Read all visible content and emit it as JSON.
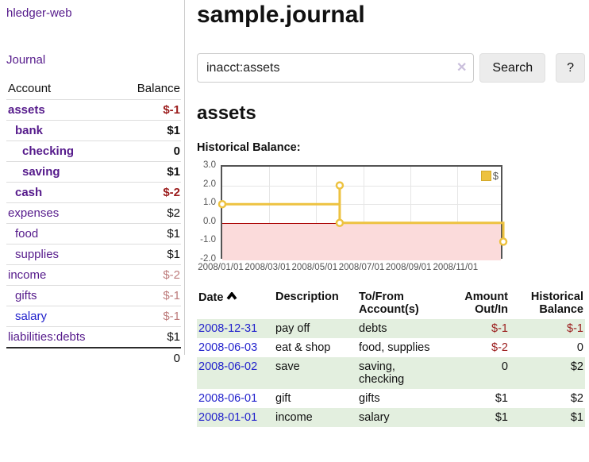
{
  "brand": "hledger-web",
  "nav": {
    "journal": "Journal"
  },
  "sidebar": {
    "header": {
      "account": "Account",
      "balance": "Balance"
    },
    "accounts": [
      {
        "name": "assets",
        "balance": "$-1",
        "depth": 0,
        "bold": true,
        "neg": "strong"
      },
      {
        "name": "bank",
        "balance": "$1",
        "depth": 1,
        "bold": true,
        "neg": "none"
      },
      {
        "name": "checking",
        "balance": "0",
        "depth": 2,
        "bold": true,
        "neg": "none"
      },
      {
        "name": "saving",
        "balance": "$1",
        "depth": 2,
        "bold": true,
        "neg": "none"
      },
      {
        "name": "cash",
        "balance": "$-2",
        "depth": 1,
        "bold": true,
        "neg": "strong"
      },
      {
        "name": "expenses",
        "balance": "$2",
        "depth": 0,
        "bold": false,
        "neg": "none"
      },
      {
        "name": "food",
        "balance": "$1",
        "depth": 1,
        "bold": false,
        "neg": "none"
      },
      {
        "name": "supplies",
        "balance": "$1",
        "depth": 1,
        "bold": false,
        "neg": "none"
      },
      {
        "name": "income",
        "balance": "$-2",
        "depth": 0,
        "bold": false,
        "neg": "pale"
      },
      {
        "name": "gifts",
        "balance": "$-1",
        "depth": 1,
        "bold": false,
        "neg": "pale"
      },
      {
        "name": "salary",
        "balance": "$-1",
        "depth": 1,
        "bold": false,
        "neg": "pale",
        "link_color": "blue"
      },
      {
        "name": "liabilities:debts",
        "balance": "$1",
        "depth": 0,
        "bold": false,
        "neg": "none"
      }
    ],
    "total": "0"
  },
  "main": {
    "title": "sample.journal",
    "search": {
      "value": "inacct:assets",
      "clear_icon": "✕",
      "button_label": "Search",
      "help_label": "?"
    },
    "account_heading": "assets",
    "chart_title": "Historical Balance:"
  },
  "chart_data": {
    "type": "line",
    "step": true,
    "title": "Historical Balance",
    "legend": "$",
    "series_color": "#edc240",
    "marker_fill": "#ffffff",
    "ylim": [
      -2,
      3
    ],
    "y_ticks": [
      "3.0",
      "2.0",
      "1.0",
      "0.0",
      "-1.0",
      "-2.0"
    ],
    "y_tick_values": [
      3,
      2,
      1,
      0,
      -1,
      -2
    ],
    "x_tick_labels": [
      "2008/01/01",
      "2008/03/01",
      "2008/05/01",
      "2008/07/01",
      "2008/09/01",
      "2008/11/01"
    ],
    "x_tick_pos": [
      0,
      0.1667,
      0.3333,
      0.5,
      0.6667,
      0.8333
    ],
    "points": [
      {
        "date": "2008-01-01",
        "x": 0,
        "y": 1
      },
      {
        "date": "2008-06-01",
        "x": 0.4167,
        "y": 2
      },
      {
        "date": "2008-06-03",
        "x": 0.4167,
        "y": 0
      },
      {
        "date": "2008-12-31",
        "x": 0.9973,
        "y": -1
      }
    ],
    "negative_region_color": "#fbdbdb",
    "zero_line_color": "#aa0000",
    "grid": true
  },
  "register": {
    "headers": {
      "date": "Date",
      "description": "Description",
      "accounts": "To/From Account(s)",
      "amount": "Amount Out/In",
      "balance": "Historical Balance"
    },
    "rows": [
      {
        "date": "2008-12-31",
        "description": "pay off",
        "accounts": "debts",
        "amount": "$-1",
        "amount_neg": true,
        "balance": "$-1",
        "balance_neg": true,
        "shade": true
      },
      {
        "date": "2008-06-03",
        "description": "eat & shop",
        "accounts": "food, supplies",
        "amount": "$-2",
        "amount_neg": true,
        "balance": "0",
        "balance_neg": false,
        "shade": false
      },
      {
        "date": "2008-06-02",
        "description": "save",
        "accounts": "saving,\nchecking",
        "amount": "0",
        "amount_neg": false,
        "balance": "$2",
        "balance_neg": false,
        "shade": true
      },
      {
        "date": "2008-06-01",
        "description": "gift",
        "accounts": "gifts",
        "amount": "$1",
        "amount_neg": false,
        "balance": "$2",
        "balance_neg": false,
        "shade": false
      },
      {
        "date": "2008-01-01",
        "description": "income",
        "accounts": "salary",
        "amount": "$1",
        "amount_neg": false,
        "balance": "$1",
        "balance_neg": false,
        "shade": true
      }
    ]
  },
  "colors": {
    "link_purple": "#551a8b",
    "link_blue": "#2222cc",
    "negative_strong": "#9b1c1c",
    "negative_pale": "#bd7b7b",
    "row_shade_green": "#e3efdf"
  }
}
